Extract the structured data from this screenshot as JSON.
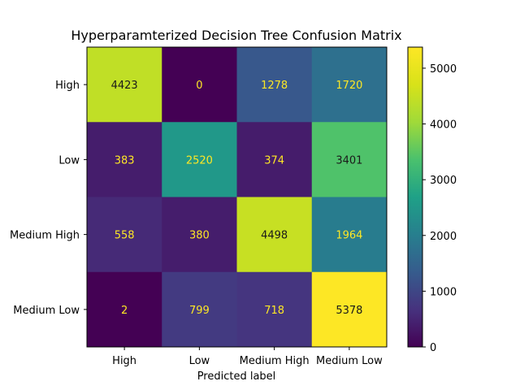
{
  "chart_data": {
    "type": "heatmap",
    "title": "Hyperparamterized Decision Tree Confusion Matrix",
    "xlabel": "Predicted label",
    "ylabel": "",
    "x_categories": [
      "High",
      "Low",
      "Medium High",
      "Medium Low"
    ],
    "y_categories": [
      "High",
      "Low",
      "Medium High",
      "Medium Low"
    ],
    "values": [
      [
        4423,
        0,
        1278,
        1720
      ],
      [
        383,
        2520,
        374,
        3401
      ],
      [
        558,
        380,
        4498,
        1964
      ],
      [
        2,
        799,
        718,
        5378
      ]
    ],
    "colormap": "viridis",
    "color_range": [
      0,
      5378
    ],
    "colorbar_ticks": [
      0,
      1000,
      2000,
      3000,
      4000,
      5000
    ],
    "grid": false
  }
}
